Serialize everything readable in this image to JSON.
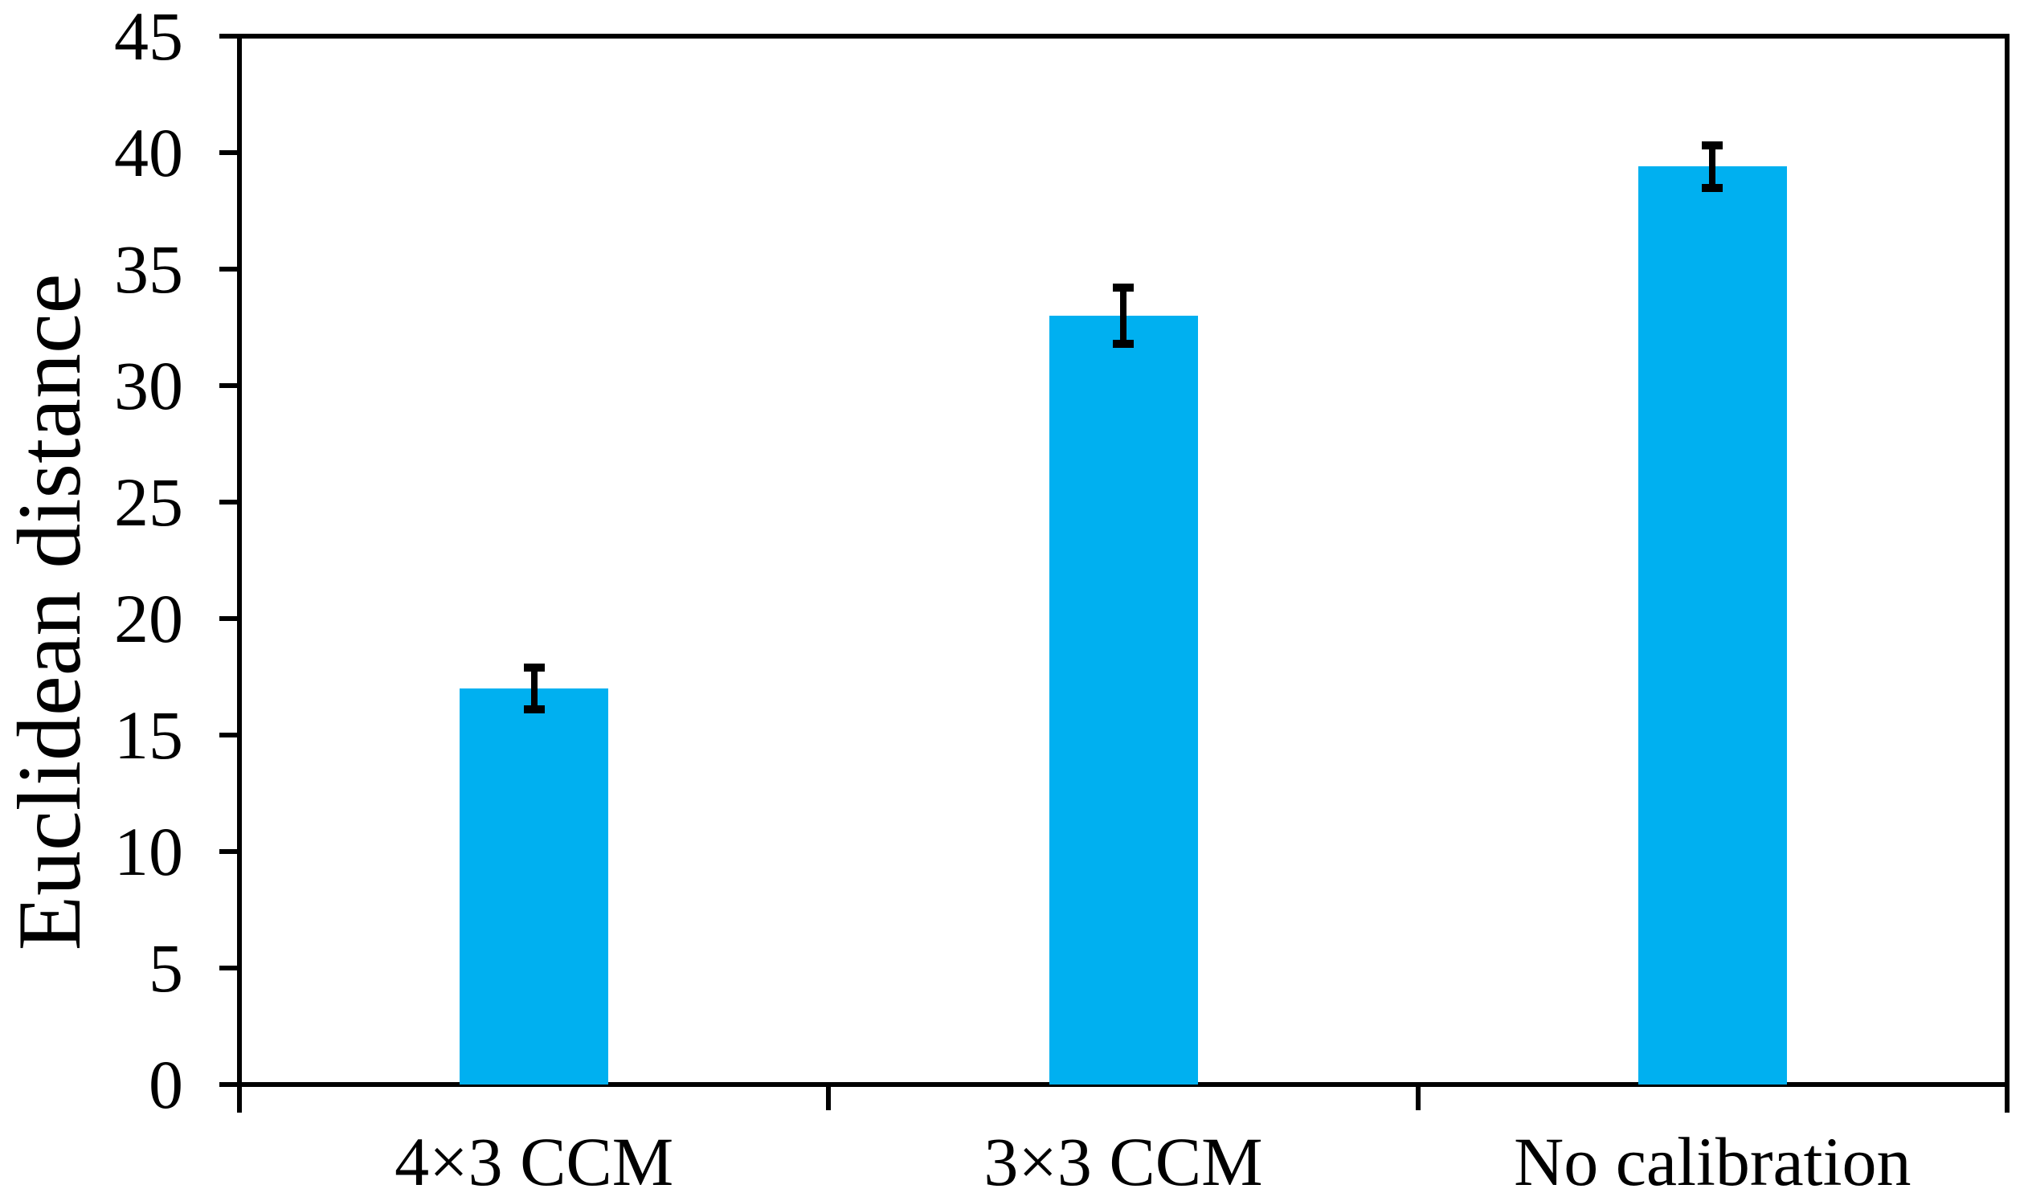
{
  "chart_data": {
    "type": "bar",
    "title": "",
    "xlabel": "",
    "ylabel": "Euclidean distance",
    "categories": [
      "4×3 CCM",
      "3×3 CCM",
      "No calibration"
    ],
    "series": [
      {
        "name": "Euclidean distance",
        "values": [
          17.0,
          33.0,
          39.4
        ],
        "errors": [
          0.9,
          1.2,
          0.9
        ]
      }
    ],
    "ylim": [
      0,
      45
    ],
    "yticks": [
      0,
      5,
      10,
      15,
      20,
      25,
      30,
      35,
      40,
      45
    ],
    "ytick_labels": [
      "0",
      "5",
      "10",
      "15",
      "20",
      "25",
      "30",
      "35",
      "40",
      "45"
    ],
    "grid": false,
    "legend_position": "none",
    "bar_color": "#00B0F0",
    "axis_color": "#000000",
    "error_bar_color": "#000000",
    "background_color": "#ffffff",
    "plot_frame": "full"
  }
}
